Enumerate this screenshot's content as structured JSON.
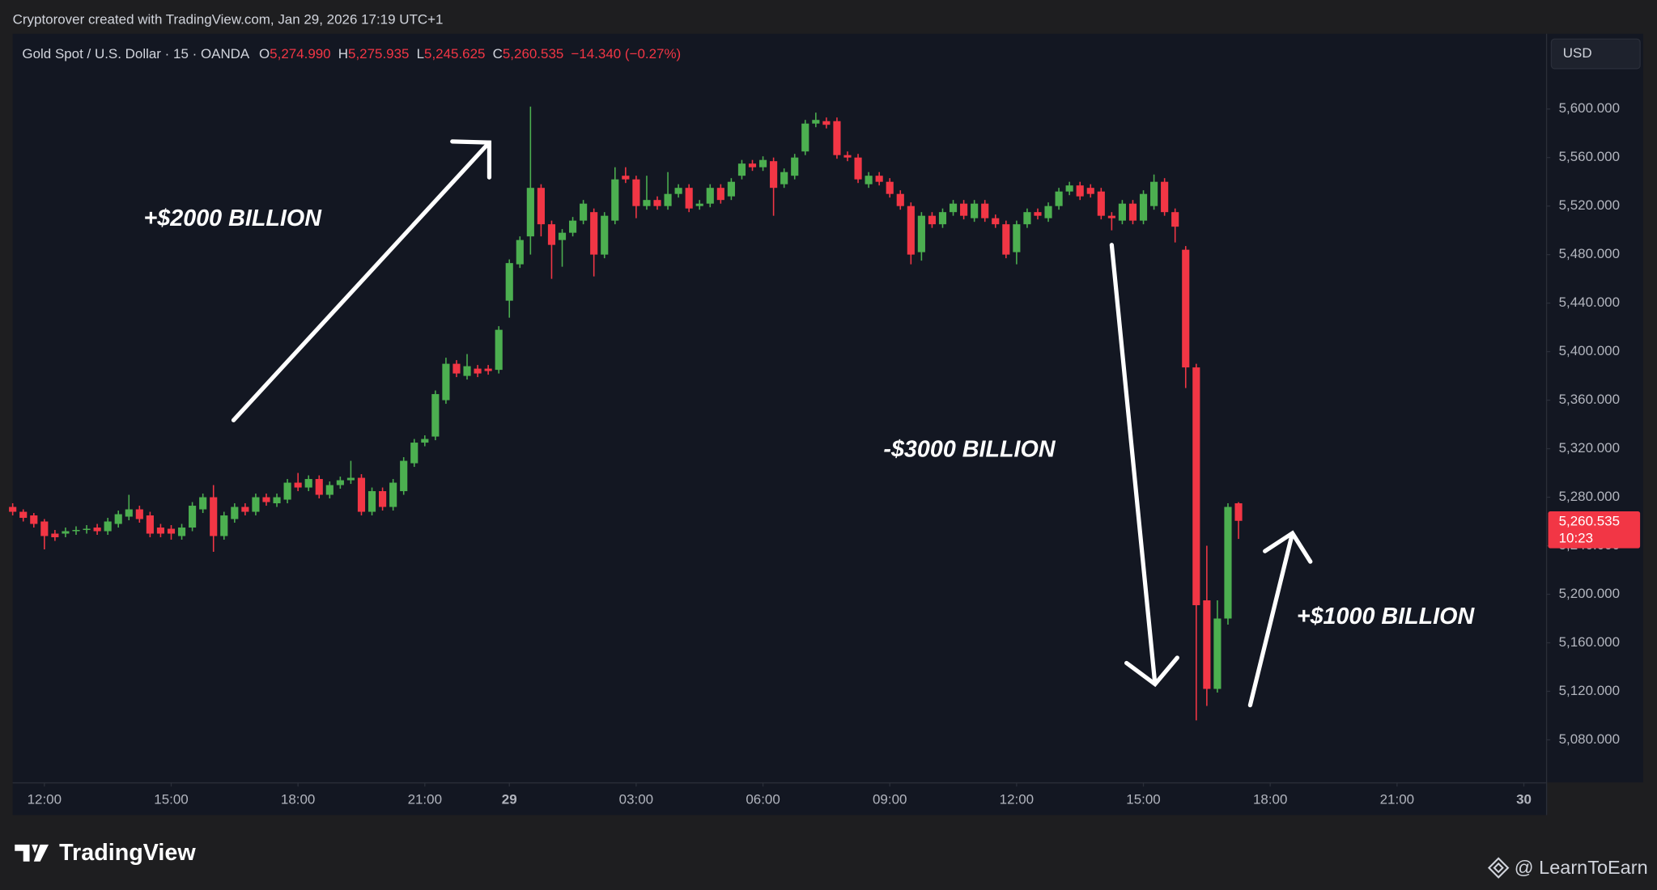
{
  "header": {
    "attribution": "Cryptorover created with TradingView.com, Jan 29, 2026 17:19 UTC+1"
  },
  "chart_data": {
    "type": "candlestick",
    "title": "Gold Spot / U.S. Dollar · 15 · OANDA",
    "legend_values": [
      {
        "letter": "O",
        "value": 5274.99,
        "label": "5,274.990"
      },
      {
        "letter": "H",
        "value": 5275.935,
        "label": "5,275.935"
      },
      {
        "letter": "L",
        "value": 5245.625,
        "label": "5,245.625"
      },
      {
        "letter": "C",
        "value": 5260.535,
        "label": "5,260.535"
      }
    ],
    "change": {
      "value": -14.34,
      "label": "−14.340 (−0.27%)"
    },
    "currency": "USD",
    "last_price": {
      "value": 5260.535,
      "label": "5,260.535"
    },
    "countdown": "10:23",
    "up_color": "#4caf50",
    "down_color": "#f23645",
    "grid": false,
    "xlim": [
      0,
      145.1
    ],
    "xticks": [
      {
        "value": 3,
        "label": "12:00"
      },
      {
        "value": 15,
        "label": "15:00"
      },
      {
        "value": 27,
        "label": "18:00"
      },
      {
        "value": 39,
        "label": "21:00"
      },
      {
        "value": 47,
        "label": "29"
      },
      {
        "value": 59,
        "label": "03:00"
      },
      {
        "value": 71,
        "label": "06:00"
      },
      {
        "value": 83,
        "label": "09:00"
      },
      {
        "value": 95,
        "label": "12:00"
      },
      {
        "value": 107,
        "label": "15:00"
      },
      {
        "value": 119,
        "label": "18:00"
      },
      {
        "value": 131,
        "label": "21:00"
      },
      {
        "value": 143,
        "label": "30"
      }
    ],
    "ylim": [
      5045,
      5662
    ],
    "yticks": [
      {
        "value": 5080,
        "label": "5,080.000"
      },
      {
        "value": 5120,
        "label": "5,120.000"
      },
      {
        "value": 5160,
        "label": "5,160.000"
      },
      {
        "value": 5200,
        "label": "5,200.000"
      },
      {
        "value": 5240,
        "label": "5,240.000"
      },
      {
        "value": 5280,
        "label": "5,280.000"
      },
      {
        "value": 5320,
        "label": "5,320.000"
      },
      {
        "value": 5360,
        "label": "5,360.000"
      },
      {
        "value": 5400,
        "label": "5,400.000"
      },
      {
        "value": 5440,
        "label": "5,440.000"
      },
      {
        "value": 5480,
        "label": "5,480.000"
      },
      {
        "value": 5520,
        "label": "5,520.000"
      },
      {
        "value": 5560,
        "label": "5,560.000"
      },
      {
        "value": 5600,
        "label": "5,600.000"
      }
    ],
    "open": [
      5272,
      5268,
      5265,
      5260,
      5250,
      5250,
      5252,
      5253,
      5255,
      5252,
      5258,
      5264,
      5270,
      5265,
      5255,
      5254,
      5248,
      5255,
      5270,
      5280,
      5248,
      5262,
      5272,
      5268,
      5280,
      5275,
      5278,
      5292,
      5288,
      5295,
      5282,
      5290,
      5294,
      5296,
      5268,
      5285,
      5272,
      5285,
      5308,
      5325,
      5330,
      5360,
      5390,
      5380,
      5386,
      5386,
      5385,
      5442,
      5472,
      5495,
      5535,
      5505,
      5492,
      5498,
      5508,
      5515,
      5480,
      5508,
      5545,
      5542,
      5520,
      5525,
      5520,
      5530,
      5535,
      5520,
      5522,
      5535,
      5528,
      5545,
      5555,
      5552,
      5557,
      5538,
      5545,
      5565,
      5588,
      5590,
      5590,
      5562,
      5560,
      5538,
      5545,
      5540,
      5530,
      5520,
      5482,
      5512,
      5505,
      5515,
      5522,
      5510,
      5522,
      5510,
      5505,
      5482,
      5505,
      5515,
      5510,
      5520,
      5532,
      5537,
      5535,
      5532,
      5512,
      5508,
      5522,
      5508,
      5520,
      5540,
      5515,
      5484,
      5387,
      5195,
      5122,
      5180,
      5274.99
    ],
    "high": [
      5275,
      5270,
      5267,
      5262,
      5253,
      5255,
      5256,
      5257,
      5258,
      5263,
      5269,
      5282,
      5273,
      5268,
      5258,
      5257,
      5258,
      5276,
      5283,
      5290,
      5268,
      5275,
      5275,
      5283,
      5283,
      5283,
      5295,
      5300,
      5298,
      5298,
      5293,
      5297,
      5310,
      5299,
      5288,
      5288,
      5295,
      5313,
      5328,
      5331,
      5368,
      5395,
      5393,
      5398,
      5389,
      5389,
      5421,
      5476,
      5495,
      5602,
      5538,
      5508,
      5501,
      5511,
      5525,
      5518,
      5515,
      5552,
      5552,
      5545,
      5545,
      5528,
      5548,
      5538,
      5538,
      5525,
      5538,
      5538,
      5543,
      5558,
      5558,
      5561,
      5560,
      5551,
      5563,
      5591,
      5597,
      5593,
      5593,
      5565,
      5563,
      5548,
      5548,
      5543,
      5533,
      5523,
      5515,
      5515,
      5518,
      5525,
      5525,
      5525,
      5525,
      5513,
      5508,
      5508,
      5518,
      5518,
      5523,
      5535,
      5540,
      5540,
      5538,
      5535,
      5515,
      5525,
      5525,
      5533,
      5546,
      5543,
      5518,
      5487,
      5390,
      5240,
      5195,
      5275,
      5275.935
    ],
    "low": [
      5265,
      5260,
      5255,
      5237,
      5244,
      5247,
      5249,
      5250,
      5249,
      5249,
      5255,
      5261,
      5259,
      5247,
      5247,
      5245,
      5245,
      5252,
      5267,
      5235,
      5245,
      5259,
      5265,
      5265,
      5273,
      5272,
      5275,
      5285,
      5285,
      5279,
      5279,
      5287,
      5291,
      5265,
      5265,
      5269,
      5269,
      5282,
      5305,
      5322,
      5327,
      5357,
      5379,
      5377,
      5379,
      5381,
      5382,
      5428,
      5469,
      5480,
      5495,
      5460,
      5470,
      5495,
      5505,
      5462,
      5477,
      5505,
      5539,
      5510,
      5517,
      5517,
      5517,
      5527,
      5515,
      5517,
      5519,
      5522,
      5525,
      5542,
      5549,
      5549,
      5512,
      5535,
      5542,
      5562,
      5585,
      5584,
      5559,
      5557,
      5539,
      5535,
      5537,
      5527,
      5517,
      5472,
      5475,
      5502,
      5502,
      5512,
      5509,
      5507,
      5507,
      5502,
      5477,
      5472,
      5502,
      5509,
      5507,
      5517,
      5529,
      5525,
      5527,
      5509,
      5500,
      5505,
      5505,
      5505,
      5517,
      5512,
      5490,
      5370,
      5096,
      5108,
      5119,
      5175,
      5245.625
    ],
    "close": [
      5268,
      5263,
      5258,
      5248,
      5247,
      5252,
      5253,
      5254,
      5252,
      5260,
      5266,
      5270,
      5262,
      5250,
      5250,
      5250,
      5255,
      5273,
      5280,
      5248,
      5265,
      5272,
      5268,
      5280,
      5276,
      5280,
      5292,
      5288,
      5295,
      5282,
      5290,
      5294,
      5296,
      5268,
      5285,
      5272,
      5292,
      5310,
      5325,
      5328,
      5365,
      5390,
      5382,
      5388,
      5382,
      5384,
      5418,
      5473,
      5492,
      5535,
      5505,
      5488,
      5498,
      5508,
      5522,
      5480,
      5512,
      5542,
      5542,
      5520,
      5525,
      5520,
      5530,
      5535,
      5518,
      5522,
      5535,
      5525,
      5540,
      5555,
      5552,
      5558,
      5535,
      5548,
      5560,
      5588,
      5591,
      5587,
      5562,
      5560,
      5542,
      5545,
      5540,
      5530,
      5520,
      5480,
      5512,
      5505,
      5515,
      5522,
      5512,
      5522,
      5510,
      5505,
      5480,
      5505,
      5515,
      5512,
      5520,
      5532,
      5537,
      5528,
      5530,
      5512,
      5510,
      5522,
      5508,
      5530,
      5540,
      5515,
      5503,
      5387,
      5191,
      5122,
      5180,
      5272,
      5260.535
    ],
    "annotations": [
      "+$2000 BILLION",
      "-$3000 BILLION",
      "+$1000 BILLION"
    ]
  },
  "footer": {
    "logo": "TradingView",
    "watermark": "@ LearnToEarn"
  }
}
